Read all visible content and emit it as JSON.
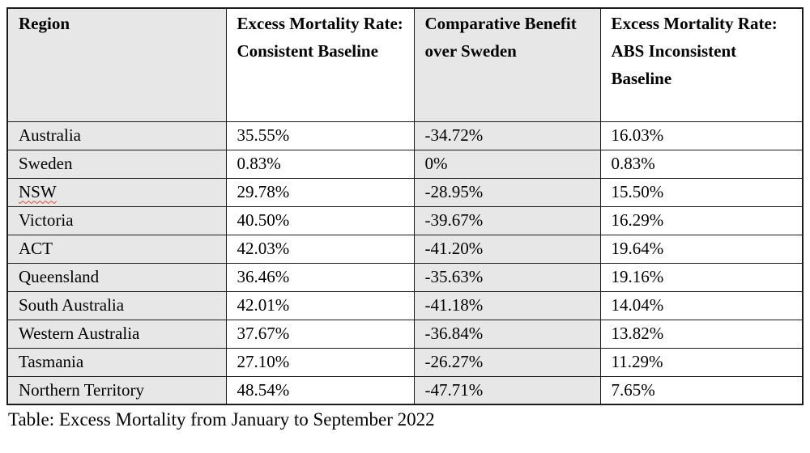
{
  "table": {
    "headers": [
      "Region",
      "Excess Mortality Rate: Consistent Baseline",
      "Comparative Benefit over Sweden",
      "Excess Mortality Rate: ABS Inconsistent Baseline"
    ],
    "rows": [
      {
        "cells": [
          "Australia",
          "35.55%",
          "-34.72%",
          "16.03%"
        ],
        "spellcheck_cell": null
      },
      {
        "cells": [
          "Sweden",
          "0.83%",
          "0%",
          "0.83%"
        ],
        "spellcheck_cell": null
      },
      {
        "cells": [
          "NSW",
          "29.78%",
          "-28.95%",
          "15.50%"
        ],
        "spellcheck_cell": 0
      },
      {
        "cells": [
          "Victoria",
          "40.50%",
          "-39.67%",
          "16.29%"
        ],
        "spellcheck_cell": null
      },
      {
        "cells": [
          "ACT",
          "42.03%",
          "-41.20%",
          "19.64%"
        ],
        "spellcheck_cell": null
      },
      {
        "cells": [
          "Queensland",
          "36.46%",
          "-35.63%",
          "19.16%"
        ],
        "spellcheck_cell": null
      },
      {
        "cells": [
          "South Australia",
          "42.01%",
          "-41.18%",
          "14.04%"
        ],
        "spellcheck_cell": null
      },
      {
        "cells": [
          "Western Australia",
          "37.67%",
          "-36.84%",
          "13.82%"
        ],
        "spellcheck_cell": null
      },
      {
        "cells": [
          "Tasmania",
          "27.10%",
          "-26.27%",
          "11.29%"
        ],
        "spellcheck_cell": null
      },
      {
        "cells": [
          "Northern Territory",
          "48.54%",
          "-47.71%",
          "7.65%"
        ],
        "spellcheck_cell": null
      }
    ],
    "caption": "Table: Excess Mortality from January to September 2022"
  },
  "colors": {
    "shaded_column_bg": "#e7e7e7",
    "border": "#1b1b1b",
    "spellcheck_underline": "#e0492e",
    "text": "#000000",
    "page_bg": "#ffffff"
  }
}
